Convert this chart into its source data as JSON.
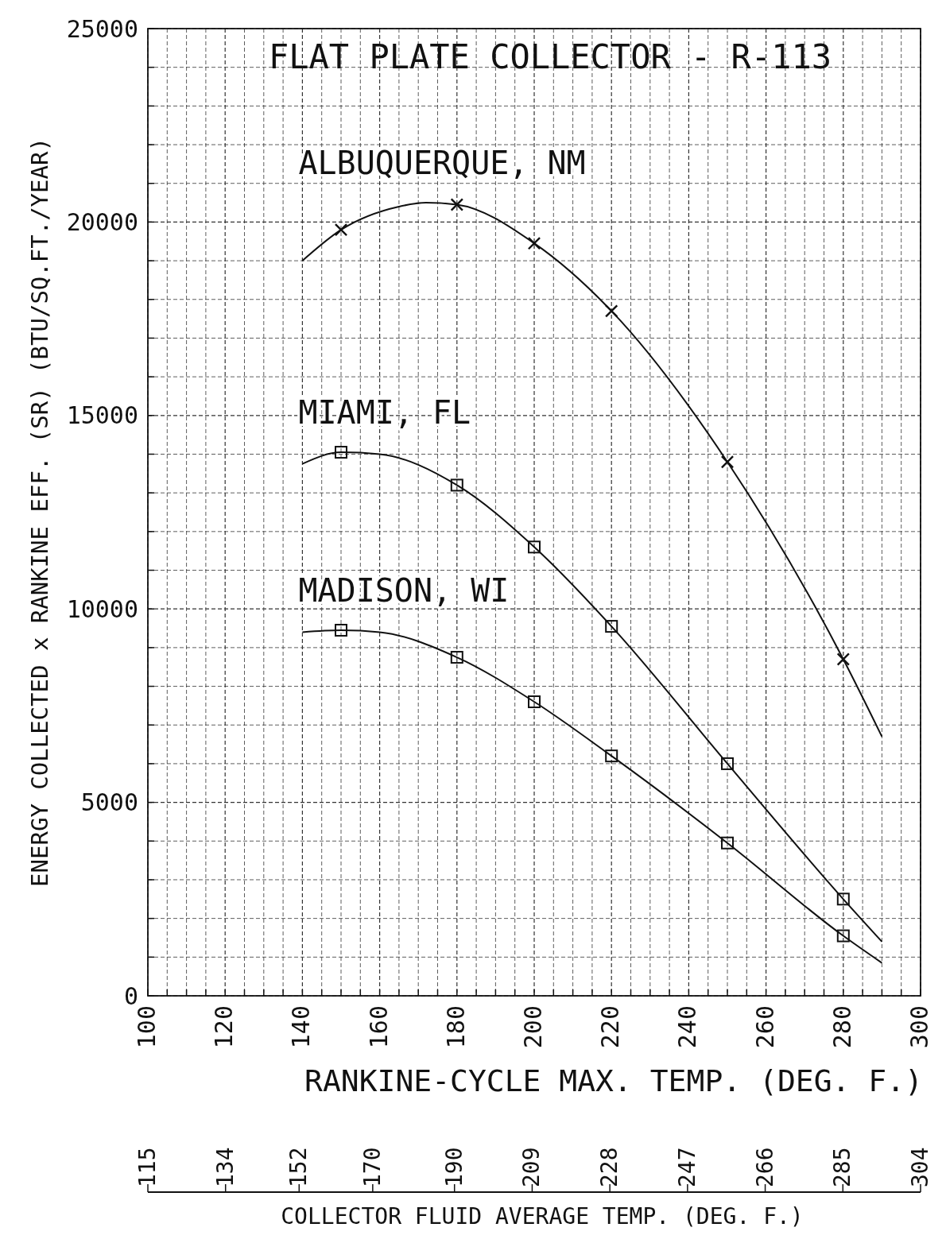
{
  "chart_data": {
    "type": "line",
    "title": "FLAT PLATE COLLECTOR - R-113",
    "xlabel": "RANKINE-CYCLE MAX. TEMP. (DEG. F.)",
    "ylabel": "ENERGY COLLECTED x RANKINE EFF. (SR) (BTU/SQ.FT./YEAR)",
    "x2label": "COLLECTOR FLUID AVERAGE TEMP. (DEG. F.)",
    "xlim": [
      100,
      300
    ],
    "ylim": [
      0,
      25000
    ],
    "x2lim": [
      115,
      304
    ],
    "xticks": [
      100,
      {
        "value": 105,
        "label": null
      },
      {
        "value": 110,
        "label": null
      },
      {
        "value": 115,
        "label": null
      },
      120,
      {
        "value": 125,
        "label": null
      },
      {
        "value": 130,
        "label": null
      },
      {
        "value": 135,
        "label": null
      },
      140,
      {
        "value": 145,
        "label": null
      },
      {
        "value": 150,
        "label": null
      },
      {
        "value": 155,
        "label": null
      },
      160,
      {
        "value": 165,
        "label": null
      },
      {
        "value": 170,
        "label": null
      },
      {
        "value": 175,
        "label": null
      },
      180,
      {
        "value": 185,
        "label": null
      },
      {
        "value": 190,
        "label": null
      },
      {
        "value": 195,
        "label": null
      },
      200,
      {
        "value": 205,
        "label": null
      },
      {
        "value": 210,
        "label": null
      },
      {
        "value": 215,
        "label": null
      },
      220,
      {
        "value": 225,
        "label": null
      },
      {
        "value": 230,
        "label": null
      },
      {
        "value": 235,
        "label": null
      },
      240,
      {
        "value": 245,
        "label": null
      },
      {
        "value": 250,
        "label": null
      },
      {
        "value": 255,
        "label": null
      },
      260,
      {
        "value": 265,
        "label": null
      },
      {
        "value": 270,
        "label": null
      },
      {
        "value": 275,
        "label": null
      },
      280,
      {
        "value": 285,
        "label": null
      },
      {
        "value": 290,
        "label": null
      },
      {
        "value": 295,
        "label": null
      },
      300
    ],
    "yticks": [
      0,
      {
        "value": 1000,
        "label": null
      },
      {
        "value": 2000,
        "label": null
      },
      {
        "value": 3000,
        "label": null
      },
      {
        "value": 4000,
        "label": null
      },
      5000,
      {
        "value": 6000,
        "label": null
      },
      {
        "value": 7000,
        "label": null
      },
      {
        "value": 8000,
        "label": null
      },
      {
        "value": 9000,
        "label": null
      },
      10000,
      {
        "value": 11000,
        "label": null
      },
      {
        "value": 12000,
        "label": null
      },
      {
        "value": 13000,
        "label": null
      },
      {
        "value": 14000,
        "label": null
      },
      15000,
      {
        "value": 16000,
        "label": null
      },
      {
        "value": 17000,
        "label": null
      },
      {
        "value": 18000,
        "label": null
      },
      {
        "value": 19000,
        "label": null
      },
      20000,
      {
        "value": 21000,
        "label": null
      },
      {
        "value": 22000,
        "label": null
      },
      {
        "value": 23000,
        "label": null
      },
      {
        "value": 24000,
        "label": null
      },
      25000
    ],
    "x2ticks": [
      115,
      134,
      152,
      170,
      190,
      209,
      228,
      247,
      266,
      285,
      304
    ],
    "grid": true,
    "legend": false,
    "marker": "none",
    "series": [
      {
        "name": "ALBUQUERQUE, NM",
        "color": "#111111",
        "x": [
          140,
          150,
          165,
          172,
          180,
          200,
          220,
          250,
          280,
          290
        ],
        "values": [
          19000,
          19800,
          20400,
          20500,
          20450,
          19450,
          17700,
          13800,
          8700,
          6700
        ]
      },
      {
        "name": "MIAMI, FL",
        "color": "#111111",
        "x": [
          140,
          150,
          160,
          180,
          200,
          220,
          250,
          280,
          290
        ],
        "values": [
          13750,
          14050,
          14000,
          13200,
          11600,
          9550,
          6000,
          2500,
          1400
        ]
      },
      {
        "name": "MADISON, WI",
        "color": "#111111",
        "x": [
          140,
          150,
          160,
          180,
          200,
          220,
          250,
          280,
          290
        ],
        "values": [
          9400,
          9450,
          9400,
          8750,
          7600,
          6200,
          3950,
          1550,
          850
        ]
      },
      {
        "type": "scatter",
        "marker": "cross",
        "color": "#111111",
        "x": [
          150,
          180,
          200,
          220,
          250,
          280
        ],
        "values": [
          19800,
          20450,
          19450,
          17700,
          13800,
          8700
        ]
      },
      {
        "type": "scatter",
        "marker": "square",
        "color": "#111111",
        "x": [
          150,
          180,
          200,
          220,
          250,
          280
        ],
        "values": [
          14050,
          13200,
          11600,
          9550,
          6000,
          2500
        ]
      },
      {
        "type": "scatter",
        "marker": "square",
        "color": "#111111",
        "x": [
          150,
          180,
          200,
          220,
          250,
          280
        ],
        "values": [
          9450,
          8750,
          7600,
          6200,
          3950,
          1550
        ]
      }
    ]
  }
}
